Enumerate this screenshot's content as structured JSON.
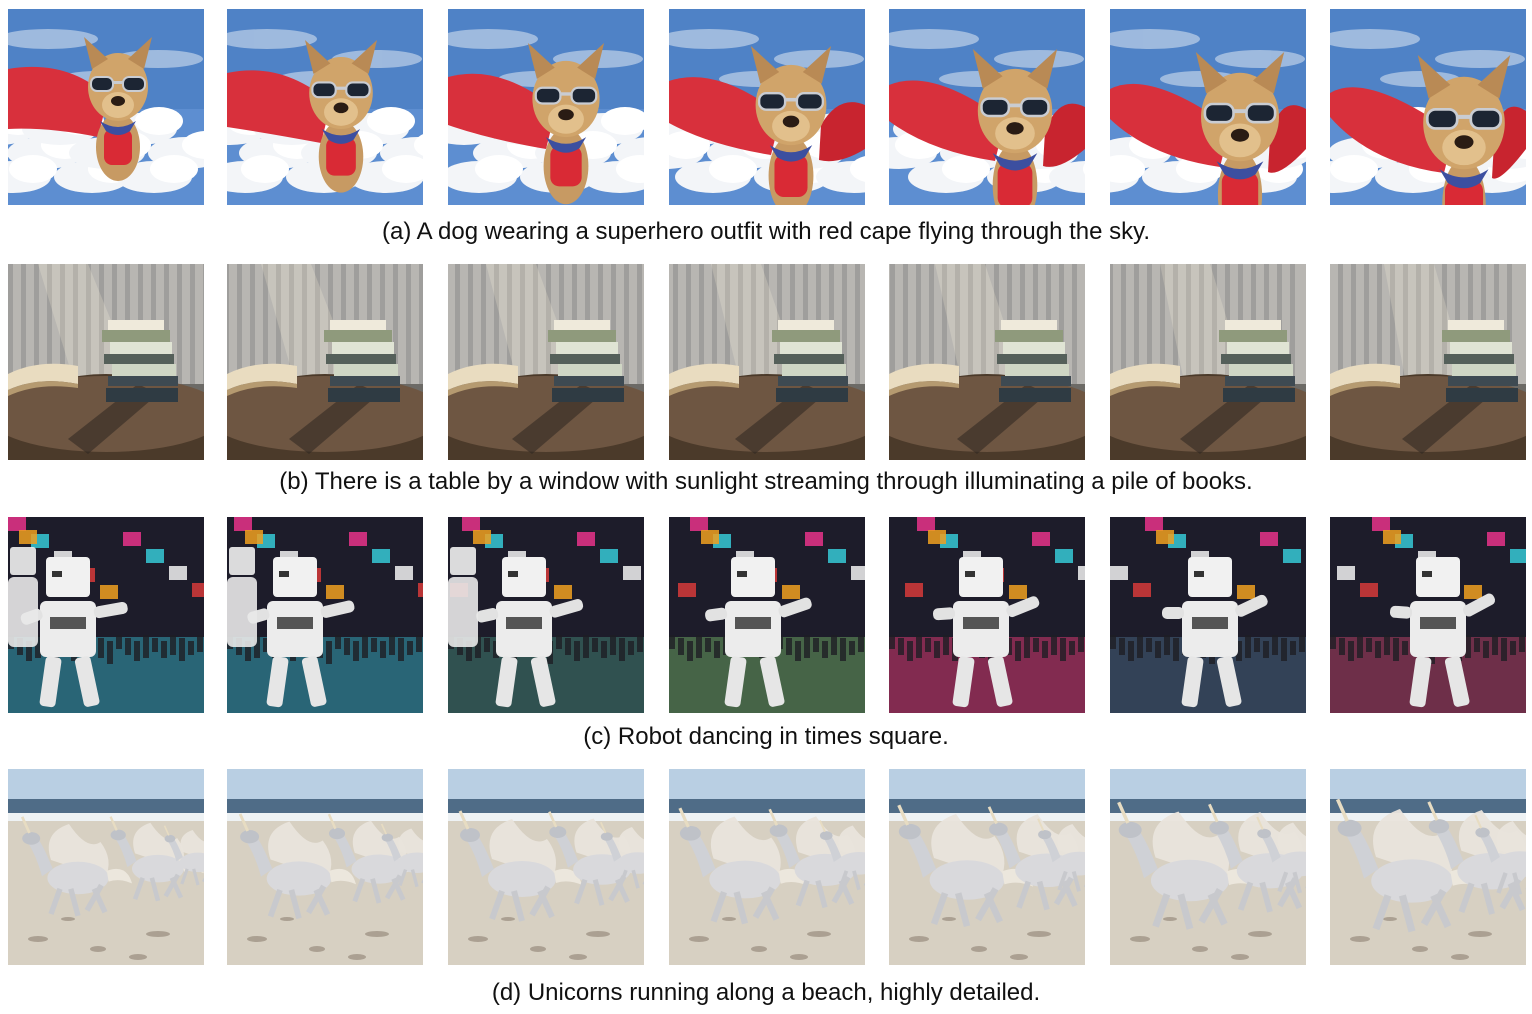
{
  "figure": {
    "rows": [
      {
        "id": "a",
        "caption": "(a) A dog wearing a superhero outfit with red cape flying through the sky.",
        "subject": "dog-superhero",
        "frame_count": 7
      },
      {
        "id": "b",
        "caption": "(b) There is a table by a window with sunlight streaming through illuminating a pile of books.",
        "subject": "books-table",
        "frame_count": 7
      },
      {
        "id": "c",
        "caption": "(c) Robot dancing in times square.",
        "subject": "robot-times-square",
        "frame_count": 7
      },
      {
        "id": "d",
        "caption": "(d) Unicorns running along a beach, highly detailed.",
        "subject": "unicorns-beach",
        "frame_count": 7
      }
    ]
  }
}
